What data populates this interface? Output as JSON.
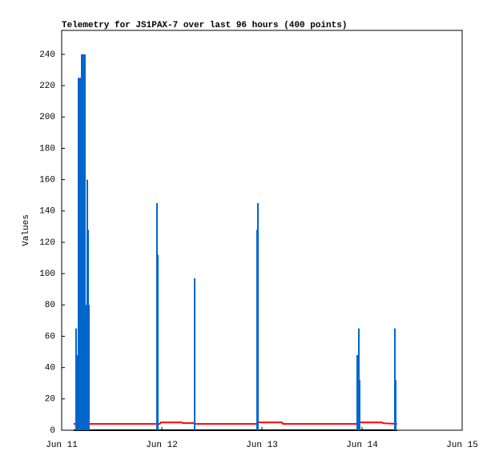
{
  "chart_data": {
    "type": "line",
    "title": "Telemetry for JS1PAX-7 over last 96 hours (400 points)",
    "y_label": "Values",
    "xlim": [
      0,
      4
    ],
    "ylim": [
      0,
      255.3
    ],
    "xticks": [
      {
        "value": 0,
        "label": "Jun 11"
      },
      {
        "value": 1,
        "label": "Jun 12"
      },
      {
        "value": 2,
        "label": "Jun 13"
      },
      {
        "value": 3,
        "label": "Jun 14"
      },
      {
        "value": 4,
        "label": "Jun 15"
      }
    ],
    "yticks": [
      0,
      20,
      40,
      60,
      80,
      100,
      120,
      140,
      160,
      180,
      200,
      220,
      240
    ],
    "series": [
      {
        "color": "#000000",
        "style": "lines",
        "x": [
          0.12,
          3.35
        ],
        "values": [
          0,
          0
        ]
      },
      {
        "color": "#ff0000",
        "style": "lines",
        "x": [
          0.12,
          0.98,
          0.99,
          1.2,
          1.21,
          1.32,
          1.33,
          1.95,
          1.96,
          2.2,
          2.21,
          2.96,
          2.97,
          3.2,
          3.21,
          3.35
        ],
        "values": [
          4,
          4,
          5,
          5,
          4.5,
          4.5,
          4,
          4,
          5,
          5,
          4,
          4,
          5,
          5,
          4.5,
          4
        ]
      },
      {
        "color": "#0066cc",
        "style": "impulses",
        "x": [
          0.144,
          0.152,
          0.168,
          0.184,
          0.192,
          0.2,
          0.208,
          0.216,
          0.224,
          0.232,
          0.24,
          0.248,
          0.256,
          0.264,
          0.272,
          0.952,
          0.96,
          1.328,
          1.952,
          1.96,
          2.952,
          2.968,
          2.976,
          3.328,
          3.336
        ],
        "values": [
          65,
          48,
          225,
          225,
          17,
          240,
          25,
          240,
          225,
          240,
          25,
          80,
          160,
          128,
          80,
          145,
          112,
          97,
          128,
          145,
          48,
          65,
          32,
          65,
          32
        ]
      }
    ]
  }
}
